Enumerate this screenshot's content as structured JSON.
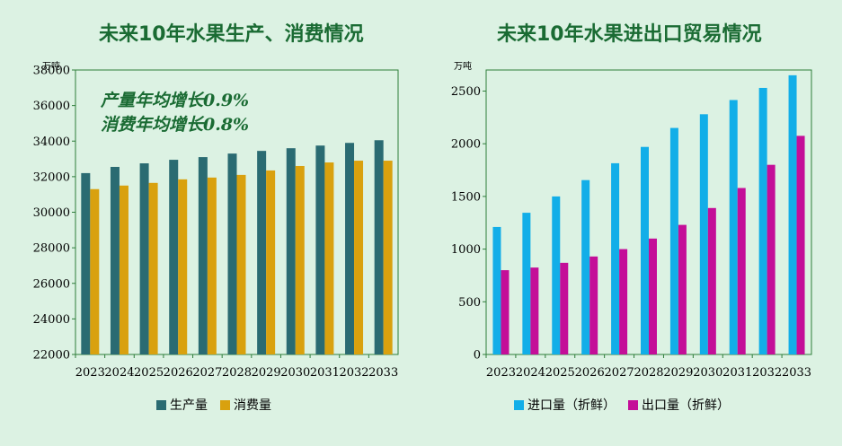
{
  "chart_data": [
    {
      "type": "bar",
      "title": "未来10年水果生产、消费情况",
      "unit_label": "万吨",
      "categories": [
        "2023",
        "2024",
        "2025",
        "2026",
        "2027",
        "2028",
        "2029",
        "2030",
        "2031",
        "2032",
        "2033"
      ],
      "ylim": [
        22000,
        38000
      ],
      "yticks": [
        22000,
        24000,
        26000,
        28000,
        30000,
        32000,
        34000,
        36000,
        38000
      ],
      "grid": false,
      "annotations": [
        "产量年均增长0.9%",
        "消费年均增长0.8%"
      ],
      "series": [
        {
          "name": "生产量",
          "color": "#2a6b72",
          "values": [
            32200,
            32550,
            32750,
            32950,
            33100,
            33300,
            33450,
            33600,
            33750,
            33900,
            34050
          ]
        },
        {
          "name": "消费量",
          "color": "#d9a10e",
          "values": [
            31300,
            31500,
            31650,
            31850,
            31950,
            32100,
            32350,
            32600,
            32800,
            32900,
            32900
          ]
        }
      ]
    },
    {
      "type": "bar",
      "title": "未来10年水果进出口贸易情况",
      "unit_label": "万吨",
      "categories": [
        "2023",
        "2024",
        "2025",
        "2026",
        "2027",
        "2028",
        "2029",
        "2030",
        "2031",
        "2032",
        "2033"
      ],
      "ylim": [
        0,
        2700
      ],
      "yticks": [
        0,
        500,
        1000,
        1500,
        2000,
        2500
      ],
      "grid": false,
      "series": [
        {
          "name": "进口量（折鲜）",
          "color": "#12aee8",
          "values": [
            1210,
            1345,
            1500,
            1655,
            1815,
            1970,
            2150,
            2280,
            2415,
            2530,
            2650
          ]
        },
        {
          "name": "出口量（折鲜）",
          "color": "#c40e98",
          "values": [
            800,
            825,
            870,
            930,
            1000,
            1100,
            1230,
            1390,
            1580,
            1800,
            2075
          ]
        }
      ]
    }
  ]
}
